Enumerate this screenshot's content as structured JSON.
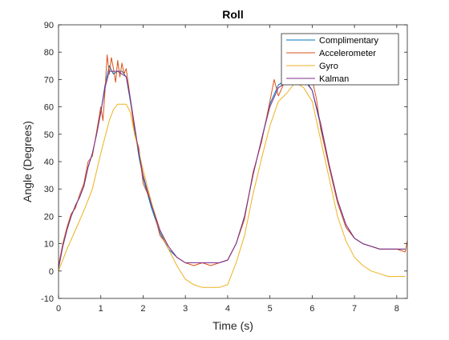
{
  "chart_data": {
    "type": "line",
    "title": "Roll",
    "xlabel": "Time (s)",
    "ylabel": "Angle (Degrees)",
    "xlim": [
      0,
      8.25
    ],
    "ylim": [
      -10,
      90
    ],
    "xticks": [
      0,
      1,
      2,
      3,
      4,
      5,
      6,
      7,
      8
    ],
    "yticks": [
      -10,
      0,
      10,
      20,
      30,
      40,
      50,
      60,
      70,
      80,
      90
    ],
    "legend_position": "top-right",
    "grid": false,
    "series": [
      {
        "name": "Complimentary",
        "color": "#0072BD",
        "x": [
          0,
          0.1,
          0.2,
          0.3,
          0.4,
          0.5,
          0.6,
          0.7,
          0.8,
          0.9,
          1.0,
          1.1,
          1.2,
          1.3,
          1.4,
          1.5,
          1.6,
          1.7,
          1.8,
          1.9,
          2.0,
          2.2,
          2.4,
          2.6,
          2.8,
          3.0,
          3.2,
          3.4,
          3.6,
          3.8,
          4.0,
          4.2,
          4.4,
          4.6,
          4.8,
          5.0,
          5.2,
          5.4,
          5.6,
          5.8,
          6.0,
          6.2,
          6.4,
          6.6,
          6.8,
          7.0,
          7.2,
          7.4,
          7.6,
          7.8,
          8.0,
          8.2
        ],
        "y": [
          1,
          9,
          15,
          20,
          24,
          27,
          31,
          38,
          43,
          50,
          58,
          68,
          75,
          72,
          73,
          73,
          71,
          62,
          52,
          42,
          34,
          23,
          14,
          8,
          5,
          3,
          3,
          3,
          3,
          3,
          4,
          10,
          20,
          35,
          48,
          61,
          68,
          70,
          72,
          71,
          66,
          53,
          38,
          25,
          16,
          12,
          10,
          9,
          8,
          8,
          8,
          8
        ]
      },
      {
        "name": "Accelerometer",
        "color": "#D95319",
        "x": [
          0,
          0.1,
          0.2,
          0.3,
          0.4,
          0.5,
          0.6,
          0.7,
          0.8,
          0.9,
          1.0,
          1.05,
          1.1,
          1.15,
          1.2,
          1.25,
          1.3,
          1.35,
          1.4,
          1.45,
          1.5,
          1.55,
          1.6,
          1.7,
          1.8,
          1.9,
          2.0,
          2.2,
          2.4,
          2.6,
          2.8,
          3.0,
          3.2,
          3.4,
          3.6,
          3.8,
          4.0,
          4.2,
          4.4,
          4.6,
          4.8,
          5.0,
          5.1,
          5.2,
          5.4,
          5.6,
          5.8,
          6.0,
          6.1,
          6.2,
          6.4,
          6.6,
          6.8,
          7.0,
          7.2,
          7.4,
          7.6,
          7.8,
          8.0,
          8.2,
          8.25
        ],
        "y": [
          2,
          10,
          16,
          21,
          23,
          28,
          32,
          40,
          42,
          51,
          60,
          55,
          66,
          79,
          72,
          78,
          74,
          69,
          77,
          71,
          76,
          72,
          74,
          63,
          50,
          45,
          32,
          25,
          13,
          9,
          5,
          3,
          2,
          3,
          2,
          3,
          4,
          10,
          19,
          36,
          47,
          62,
          70,
          64,
          71,
          73,
          72,
          70,
          63,
          52,
          38,
          25,
          16,
          12,
          10,
          9,
          8,
          8,
          8,
          7,
          11
        ]
      },
      {
        "name": "Gyro",
        "color": "#EDB120",
        "x": [
          0,
          0.2,
          0.4,
          0.6,
          0.8,
          1.0,
          1.2,
          1.3,
          1.4,
          1.5,
          1.6,
          1.7,
          1.8,
          2.0,
          2.2,
          2.4,
          2.6,
          2.8,
          3.0,
          3.2,
          3.4,
          3.6,
          3.8,
          4.0,
          4.2,
          4.4,
          4.6,
          4.8,
          5.0,
          5.2,
          5.4,
          5.6,
          5.8,
          6.0,
          6.2,
          6.4,
          6.6,
          6.8,
          7.0,
          7.2,
          7.4,
          7.6,
          7.8,
          8.0,
          8.2
        ],
        "y": [
          0,
          8,
          15,
          22,
          30,
          43,
          55,
          59,
          61,
          61,
          61,
          58,
          50,
          37,
          25,
          15,
          8,
          2,
          -3,
          -5,
          -6,
          -6,
          -6,
          -5,
          3,
          13,
          28,
          41,
          53,
          62,
          65,
          69,
          67,
          62,
          48,
          34,
          20,
          11,
          5,
          2,
          0,
          -1,
          -2,
          -2,
          -2
        ]
      },
      {
        "name": "Kalman",
        "color": "#7E2F8E",
        "x": [
          0,
          0.1,
          0.2,
          0.3,
          0.4,
          0.5,
          0.6,
          0.7,
          0.8,
          0.9,
          1.0,
          1.1,
          1.2,
          1.3,
          1.4,
          1.5,
          1.6,
          1.7,
          1.8,
          1.9,
          2.0,
          2.2,
          2.4,
          2.6,
          2.8,
          3.0,
          3.2,
          3.4,
          3.6,
          3.8,
          4.0,
          4.2,
          4.4,
          4.6,
          4.8,
          5.0,
          5.2,
          5.4,
          5.6,
          5.8,
          6.0,
          6.2,
          6.4,
          6.6,
          6.8,
          7.0,
          7.2,
          7.4,
          7.6,
          7.8,
          8.0,
          8.2
        ],
        "y": [
          1,
          9,
          15,
          20,
          24,
          27,
          31,
          38,
          43,
          50,
          58,
          67,
          73,
          73,
          73,
          72,
          71,
          63,
          53,
          43,
          35,
          24,
          15,
          9,
          5,
          3,
          3,
          3,
          3,
          3,
          4,
          10,
          20,
          35,
          48,
          60,
          67,
          69,
          71,
          70,
          66,
          54,
          39,
          26,
          17,
          12,
          10,
          9,
          8,
          8,
          8,
          8
        ]
      }
    ]
  }
}
